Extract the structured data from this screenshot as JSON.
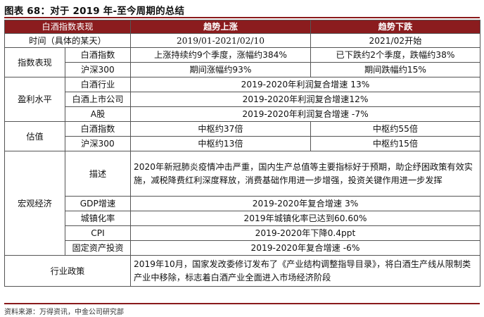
{
  "figure": {
    "label": "图表 68：",
    "title": "对于 2019 年-至今周期的总结",
    "source": "资料来源：万得资讯，中金公司研究部"
  },
  "table": {
    "header": [
      "白酒指数表现",
      "趋势上涨",
      "趋势下跌"
    ],
    "time": {
      "label": "时间（具体的某天）",
      "up": "2019/01-2021/02/10",
      "down": "2021/02开始"
    },
    "index_perf": {
      "group": "指数表现",
      "rows": [
        {
          "label": "白酒指数",
          "up": "上涨持续约9个季度，涨幅约384%",
          "down": "已下跌约2个季度，跌幅约38%"
        },
        {
          "label": "沪深300",
          "up": "期间涨幅约93%",
          "down": "期间跌幅约15%"
        }
      ]
    },
    "profit": {
      "group": "盈利水平",
      "rows": [
        {
          "label": "白酒行业",
          "value": "2019-2020年利润复合增速 13%"
        },
        {
          "label": "白酒上市公司",
          "value": "2019-2020年利润复合增速12%"
        },
        {
          "label": "A股",
          "value": "2019-2020年利润复合增速 -7%"
        }
      ]
    },
    "valuation": {
      "group": "估值",
      "rows": [
        {
          "label": "白酒指数",
          "up": "中枢约37倍",
          "down": "中枢约55倍"
        },
        {
          "label": "沪深300",
          "up": "中枢约13倍",
          "down": "中枢约15倍"
        }
      ]
    },
    "macro": {
      "group": "宏观经济",
      "desc_label": "描述",
      "desc": "2020年新冠肺炎疫情冲击严重，国内生产总值等主要指标好于预期，助企纾困政策有效实施，减税降费红利深度释放，消费基础作用进一步增强，投资关键作用进一步发挥",
      "rows": [
        {
          "label": "GDP增速",
          "value": "2019-2020年复合增速 3%"
        },
        {
          "label": "城镇化率",
          "value": "2019年城镇化率已达到60.60%"
        },
        {
          "label": "CPI",
          "value": "2019-2020年下降0.4ppt"
        },
        {
          "label": "固定资产投资",
          "value": "2019-2020年复合增速 -6%"
        }
      ]
    },
    "policy": {
      "label": "行业政策",
      "value": "2019年10月，国家发改委修订发布了《产业结构调整指导目录》，将白酒生产线从限制类产业中移除，标志着白酒产业全面进入市场经济阶段"
    }
  }
}
